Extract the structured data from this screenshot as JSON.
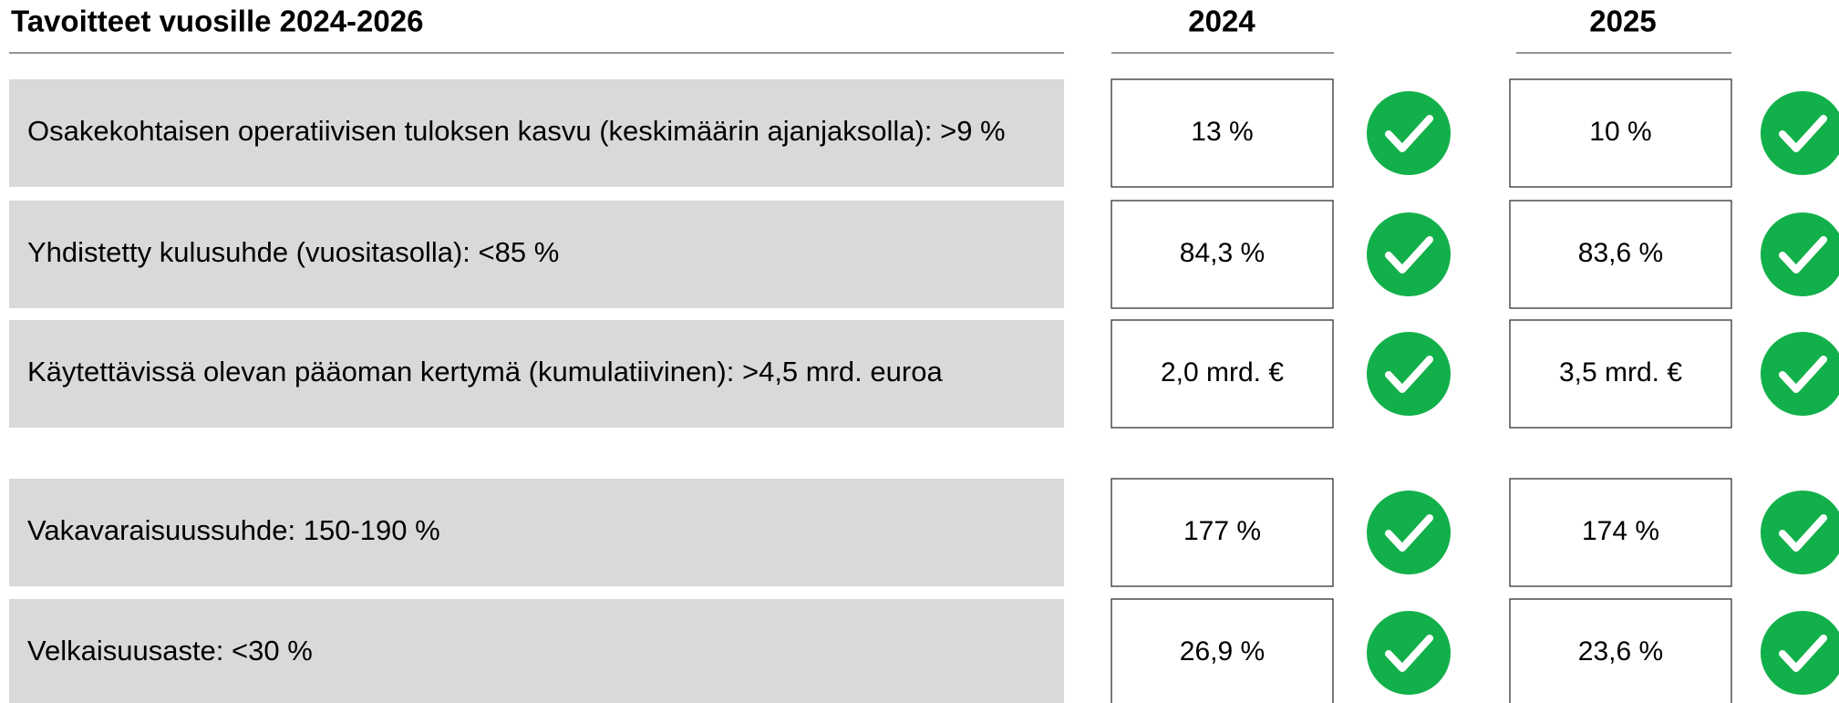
{
  "header": {
    "title": "Tavoitteet vuosille 2024-2026",
    "years": [
      "2024",
      "2025"
    ]
  },
  "rows": [
    {
      "label": "Osakekohtaisen operatiivisen tuloksen kasvu (keskimäärin ajanjaksolla): >9 %",
      "values": [
        "13 %",
        "10 %"
      ]
    },
    {
      "label": "Yhdistetty kulusuhde (vuositasolla): <85 %",
      "values": [
        "84,3 %",
        "83,6 %"
      ]
    },
    {
      "label": "Käytettävissä olevan pääoman kertymä (kumulatiivinen): >4,5 mrd. euroa",
      "values": [
        "2,0 mrd. €",
        "3,5 mrd. €"
      ]
    },
    {
      "label": "Vakavaraisuussuhde: 150-190 %",
      "values": [
        "177 %",
        "174 %"
      ]
    },
    {
      "label": "Velkaisuusaste: <30 %",
      "values": [
        "26,9 %",
        "23,6 %"
      ]
    }
  ]
}
